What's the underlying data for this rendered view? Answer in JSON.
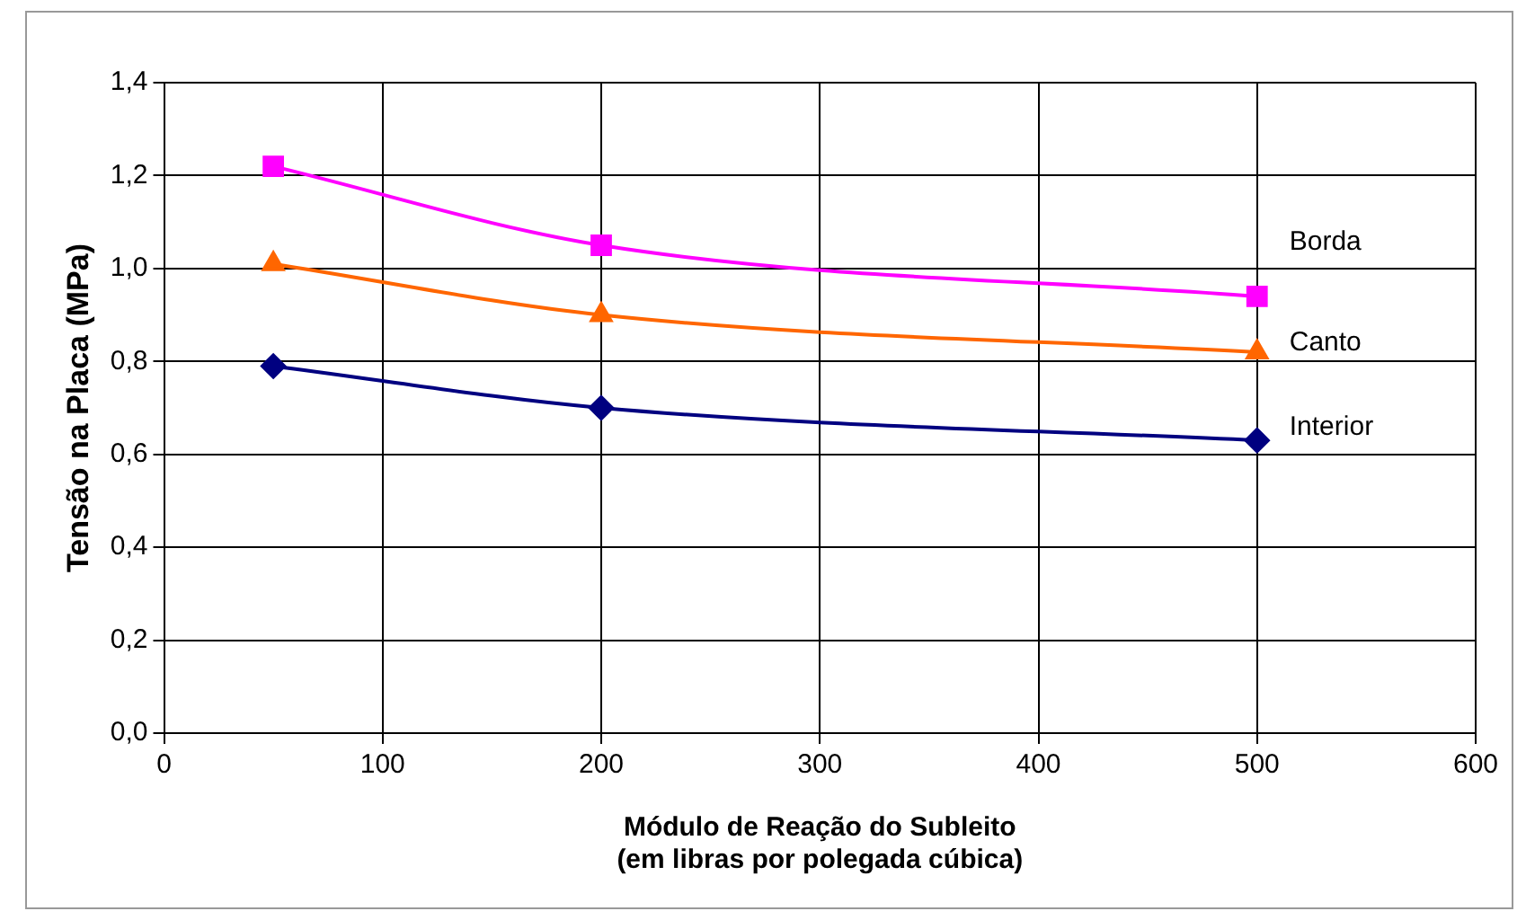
{
  "chart_data": {
    "type": "line",
    "xlabel": "Módulo de Reação do Subleito\n(em libras por polegada cúbica)",
    "ylabel": "Tensão na Placa (MPa)",
    "x": [
      50,
      200,
      500
    ],
    "series": [
      {
        "name": "Borda",
        "color": "#ff00ff",
        "values": [
          1.22,
          1.05,
          0.94
        ],
        "marker": "square"
      },
      {
        "name": "Canto",
        "color": "#ff6600",
        "values": [
          1.01,
          0.9,
          0.82
        ],
        "marker": "triangle"
      },
      {
        "name": "Interior",
        "color": "#000080",
        "values": [
          0.79,
          0.7,
          0.63
        ],
        "marker": "diamond"
      }
    ],
    "xlim": [
      0,
      600
    ],
    "xticks": [
      0,
      100,
      200,
      300,
      400,
      500,
      600
    ],
    "ylim": [
      0,
      1.4
    ],
    "yticks": [
      {
        "value": 0,
        "label": "0,0"
      },
      {
        "value": 0.2,
        "label": "0,2"
      },
      {
        "value": 0.4,
        "label": "0,4"
      },
      {
        "value": 0.6,
        "label": "0,6"
      },
      {
        "value": 0.8,
        "label": "0,8"
      },
      {
        "value": 1,
        "label": "1,0"
      },
      {
        "value": 1.2,
        "label": "1,2"
      },
      {
        "value": 1.4,
        "label": "1,4"
      }
    ],
    "grid": true,
    "legend": false,
    "line_style": "solid"
  }
}
